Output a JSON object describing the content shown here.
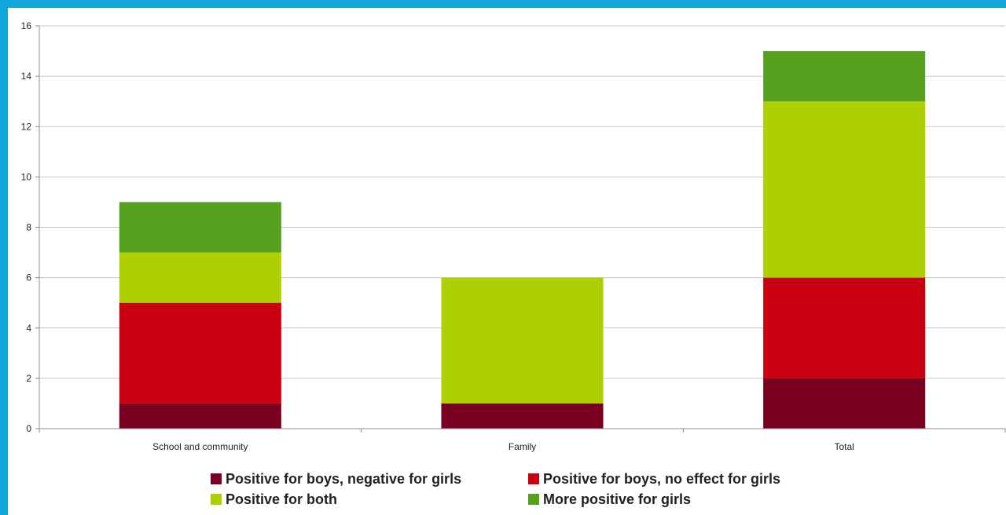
{
  "chart_data": {
    "type": "bar",
    "stacked": true,
    "categories": [
      "School and community",
      "Family",
      "Total"
    ],
    "series": [
      {
        "name": "Positive for boys, negative for girls",
        "values": [
          1,
          1,
          2
        ],
        "color": "#7a0022"
      },
      {
        "name": "Positive for boys, no effect for girls",
        "values": [
          4,
          0,
          4
        ],
        "color": "#c8000f"
      },
      {
        "name": "Positive for both",
        "values": [
          2,
          5,
          7
        ],
        "color": "#afd000"
      },
      {
        "name": "More positive for girls",
        "values": [
          2,
          0,
          2
        ],
        "color": "#56a21f"
      }
    ],
    "yticks": [
      "0",
      "2",
      "4",
      "6",
      "8",
      "10",
      "12",
      "14",
      "16"
    ],
    "ylim": [
      0,
      16
    ],
    "grid": true,
    "legend_position": "bottom",
    "title": "",
    "xlabel": "",
    "ylabel": ""
  }
}
